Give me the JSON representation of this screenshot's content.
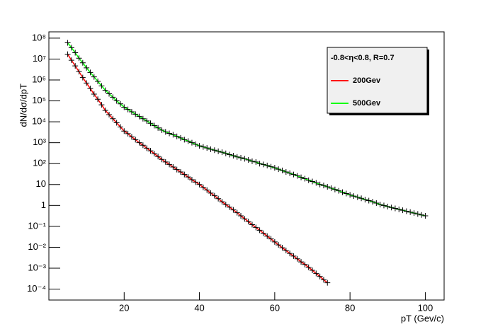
{
  "chart_data": {
    "type": "line",
    "x_label": "pT (Gev/c)",
    "y_label": "dN/dσ/dpT",
    "legend_title": "-0.8<η<0.8, R=0.7",
    "legend": "top-right",
    "log_y": true,
    "xlim": [
      0,
      105
    ],
    "xticks": [
      20,
      40,
      60,
      80,
      100
    ],
    "ylim": [
      3e-05,
      200000000
    ],
    "yticks": [
      {
        "value": 100000000,
        "label": "10⁸"
      },
      {
        "value": 10000000,
        "label": "10⁷"
      },
      {
        "value": 1000000,
        "label": "10⁶"
      },
      {
        "value": 100000,
        "label": "10⁵"
      },
      {
        "value": 10000,
        "label": "10⁴"
      },
      {
        "value": 1000,
        "label": "10³"
      },
      {
        "value": 100,
        "label": "10²"
      },
      10,
      1,
      {
        "value": 0.1,
        "label": "10⁻¹"
      },
      {
        "value": 0.01,
        "label": "10⁻²"
      },
      {
        "value": 0.001,
        "label": "10⁻³"
      },
      {
        "value": 0.0001,
        "label": "10⁻⁴"
      }
    ],
    "marker_color": "#000000",
    "series": [
      {
        "name": "200Gev",
        "color": "#ff0000",
        "x": [
          5,
          6,
          7,
          8,
          9,
          10,
          11,
          12,
          13,
          14,
          15,
          16,
          17,
          18,
          19,
          20,
          21,
          22,
          23,
          24,
          25,
          26,
          27,
          28,
          29,
          30,
          31,
          32,
          33,
          34,
          35,
          36,
          37,
          38,
          39,
          40,
          41,
          42,
          43,
          44,
          45,
          46,
          47,
          48,
          49,
          50,
          51,
          52,
          53,
          54,
          55,
          56,
          57,
          58,
          59,
          60,
          61,
          62,
          63,
          64,
          65,
          66,
          67,
          68,
          69,
          70,
          71,
          72,
          73,
          74
        ],
        "values": [
          17000000,
          8800000,
          4700000,
          2500000,
          1300000,
          710000,
          390000,
          210000,
          120000,
          65000,
          35000,
          22000,
          14000,
          9000,
          5700,
          3600,
          2700,
          1900,
          1400,
          1000,
          760,
          550,
          410,
          300,
          220,
          160,
          120,
          91,
          69,
          52,
          40,
          30,
          23,
          17,
          13,
          10,
          7.3,
          5.4,
          3.9,
          2.9,
          2.1,
          1.5,
          1.1,
          0.83,
          0.61,
          0.45,
          0.32,
          0.23,
          0.17,
          0.12,
          0.089,
          0.065,
          0.047,
          0.034,
          0.025,
          0.018,
          0.013,
          0.0095,
          0.007,
          0.0051,
          0.0038,
          0.0028,
          0.002,
          0.0015,
          0.0011,
          0.00079,
          0.00056,
          0.0004,
          0.00028,
          0.0002
        ]
      },
      {
        "name": "500Gev",
        "color": "#00ff00",
        "x": [
          5,
          6,
          7,
          8,
          9,
          10,
          11,
          12,
          13,
          14,
          15,
          16,
          17,
          18,
          19,
          20,
          21,
          22,
          23,
          24,
          25,
          26,
          27,
          28,
          29,
          30,
          31,
          32,
          33,
          34,
          35,
          36,
          37,
          38,
          39,
          40,
          41,
          42,
          43,
          44,
          45,
          46,
          47,
          48,
          49,
          50,
          51,
          52,
          53,
          54,
          55,
          56,
          57,
          58,
          59,
          60,
          61,
          62,
          63,
          64,
          65,
          66,
          67,
          68,
          69,
          70,
          71,
          72,
          73,
          74,
          75,
          76,
          77,
          78,
          79,
          80,
          81,
          82,
          83,
          84,
          85,
          86,
          87,
          88,
          89,
          90,
          91,
          92,
          93,
          94,
          95,
          96,
          97,
          98,
          99,
          100
        ],
        "values": [
          60000000,
          35000000,
          20000000,
          11000000,
          6600000,
          3800000,
          2300000,
          1400000,
          860000,
          520000,
          320000,
          220000,
          150000,
          100000,
          72000,
          50000,
          39000,
          30000,
          23000,
          18000,
          14000,
          11000,
          8500,
          6600,
          5100,
          4000,
          3300,
          2800,
          2400,
          2000,
          1700,
          1400,
          1200,
          1000,
          840,
          710,
          630,
          560,
          490,
          440,
          390,
          350,
          310,
          270,
          240,
          210,
          190,
          170,
          150,
          130,
          120,
          100,
          91,
          81,
          71,
          63,
          54,
          47,
          40,
          35,
          30,
          26,
          22,
          19,
          16,
          14,
          12,
          10,
          9,
          7.8,
          6.7,
          5.8,
          5,
          4.3,
          3.7,
          3.2,
          2.8,
          2.5,
          2.2,
          1.9,
          1.7,
          1.5,
          1.3,
          1.1,
          1,
          0.89,
          0.8,
          0.72,
          0.65,
          0.59,
          0.53,
          0.48,
          0.43,
          0.39,
          0.35,
          0.32
        ]
      }
    ]
  }
}
